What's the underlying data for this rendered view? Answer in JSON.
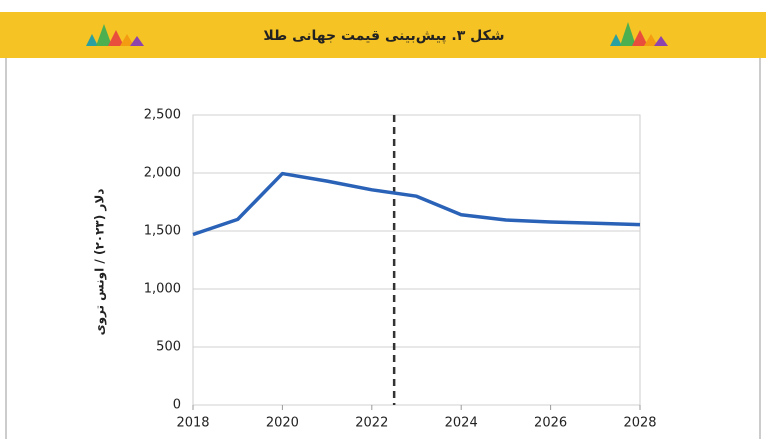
{
  "chart_data": {
    "type": "line",
    "title": "شکل ۳. پیش‌بینی قیمت جهانی طلا",
    "y_label": "دلار (۲۰۲۳) / اونس تروی",
    "x": [
      2018,
      2019,
      2020,
      2021,
      2022,
      2023,
      2024,
      2025,
      2026,
      2027,
      2028
    ],
    "series": [
      {
        "color": "#2a62b8",
        "values": [
          1470,
          1600,
          1995,
          1930,
          1855,
          1800,
          1640,
          1595,
          1578,
          1567,
          1555
        ]
      }
    ],
    "xlim": [
      2018,
      2028
    ],
    "xticks": [
      2018,
      2020,
      2022,
      2024,
      2026,
      2028
    ],
    "ylim": [
      0,
      2500
    ],
    "yticks": [
      0,
      500,
      {
        "value": 1000,
        "label": "1,000"
      },
      {
        "value": 1500,
        "label": "1,500"
      },
      {
        "value": 2000,
        "label": "2,000"
      },
      {
        "value": 2500,
        "label": "2,500"
      }
    ],
    "vline": 2022.5,
    "grid": true
  }
}
